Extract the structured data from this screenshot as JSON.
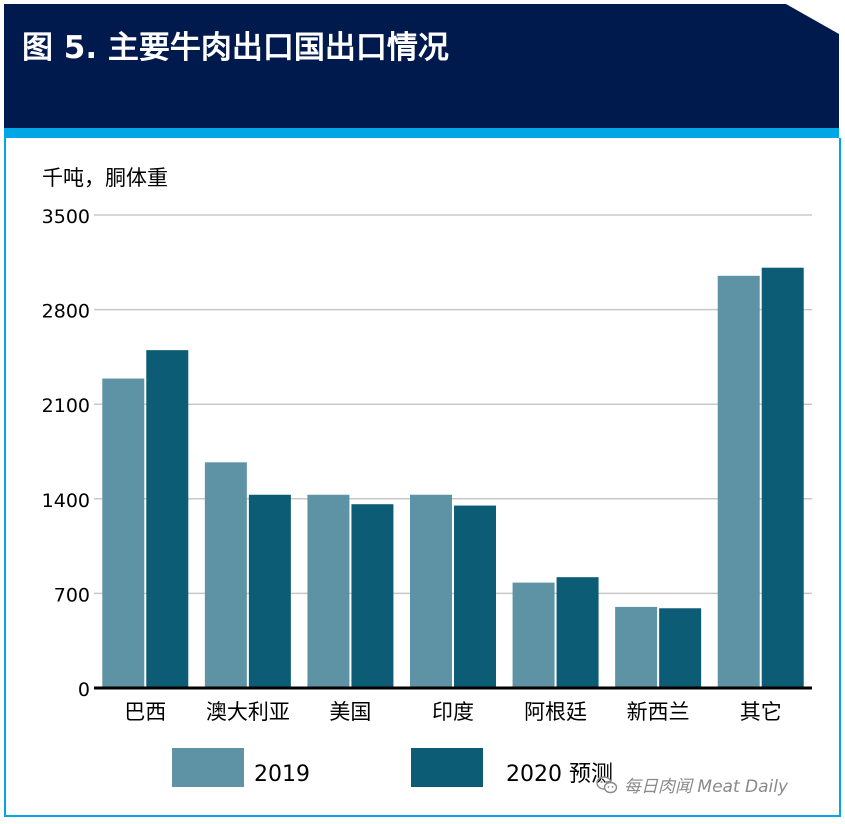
{
  "header": {
    "title": "图 5. 主要牛肉出口国出口情况"
  },
  "colors": {
    "header_bg": "#001a4d",
    "accent": "#00a6e6",
    "series_2019": "#5e93a5",
    "series_2020": "#0c5c75"
  },
  "chart_data": {
    "type": "bar",
    "ylabel": "千吨，胴体重",
    "ylim": [
      0,
      3500
    ],
    "yticks": [
      0,
      700,
      1400,
      2100,
      2800,
      3500
    ],
    "categories": [
      "巴西",
      "澳大利亚",
      "美国",
      "印度",
      "阿根廷",
      "新西兰",
      "其它"
    ],
    "series": [
      {
        "name": "2019",
        "color": "#5e93a5",
        "values": [
          2290,
          1670,
          1430,
          1430,
          780,
          600,
          3050
        ]
      },
      {
        "name": "2020 预测",
        "color": "#0c5c75",
        "values": [
          2500,
          1430,
          1360,
          1350,
          820,
          590,
          3110
        ]
      }
    ],
    "grid": true,
    "legend_position": "bottom"
  },
  "watermark": {
    "text": "每日肉闻 Meat Daily",
    "icon": "wechat-icon"
  }
}
